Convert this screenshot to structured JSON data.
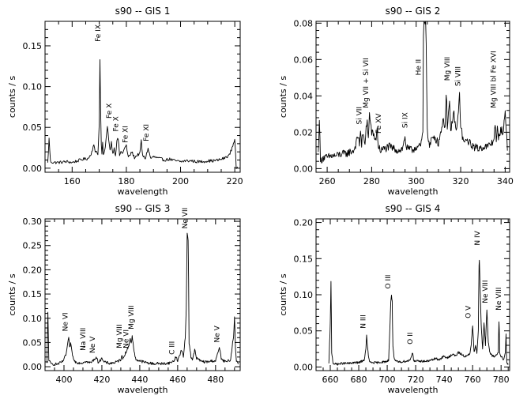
{
  "chart_data": [
    {
      "type": "line",
      "title": "s90 -- GIS 1",
      "xlabel": "wavelength",
      "ylabel": "counts / s",
      "xlim": [
        150,
        222
      ],
      "ylim": [
        -0.005,
        0.18
      ],
      "xticks": [
        160,
        180,
        200,
        220
      ],
      "xtick_labels": [
        "160",
        "180",
        "200",
        "220"
      ],
      "yticks": [
        0.0,
        0.05,
        0.1,
        0.15
      ],
      "ytick_labels": [
        "0.00",
        "0.05",
        "0.10",
        "0.15"
      ],
      "baseline": 0.007,
      "noise": 0.0018,
      "range": [
        151,
        221
      ],
      "series": [
        {
          "x": [
            151,
            151.5,
            152,
            153,
            155,
            158,
            160,
            162,
            164,
            166,
            167,
            168,
            168.5,
            169,
            169.5,
            170,
            170.3,
            170.6,
            171,
            171.2,
            171.5,
            172,
            173,
            174,
            174.5,
            175,
            175.5,
            176,
            176.5,
            177,
            177.5,
            178,
            178.5,
            179,
            180,
            180.5,
            181,
            182,
            183,
            184,
            185,
            185.5,
            186,
            187,
            188,
            188.5,
            189,
            190,
            192,
            194,
            196,
            198,
            200,
            202,
            204,
            206,
            208,
            210,
            212,
            214,
            216,
            218,
            219,
            219.5,
            220,
            220.3,
            220.5,
            221
          ],
          "values": [
            0.006,
            0.036,
            0.008,
            0.007,
            0.007,
            0.008,
            0.007,
            0.009,
            0.011,
            0.012,
            0.018,
            0.028,
            0.02,
            0.022,
            0.016,
            0.056,
            0.148,
            0.035,
            0.018,
            0.033,
            0.016,
            0.02,
            0.05,
            0.022,
            0.032,
            0.018,
            0.024,
            0.016,
            0.034,
            0.036,
            0.016,
            0.02,
            0.018,
            0.022,
            0.028,
            0.016,
            0.014,
            0.02,
            0.013,
            0.016,
            0.018,
            0.034,
            0.015,
            0.012,
            0.024,
            0.018,
            0.012,
            0.014,
            0.012,
            0.01,
            0.011,
            0.009,
            0.008,
            0.009,
            0.009,
            0.008,
            0.008,
            0.009,
            0.009,
            0.01,
            0.012,
            0.016,
            0.025,
            0.03,
            0.036,
            0.02,
            0.0,
            0.0
          ]
        }
      ],
      "annotations": [
        {
          "text": "Fe IX",
          "x": 170.4,
          "y": 0.152
        },
        {
          "text": "Fe X",
          "x": 174.5,
          "y": 0.058
        },
        {
          "text": "Fe X",
          "x": 177.0,
          "y": 0.042
        },
        {
          "text": "Fe XI",
          "x": 180.4,
          "y": 0.028
        },
        {
          "text": "Fe XI",
          "x": 188.2,
          "y": 0.03
        }
      ]
    },
    {
      "type": "line",
      "title": "s90 -- GIS 2",
      "xlabel": "wavelength",
      "ylabel": "counts / s",
      "xlim": [
        255,
        342
      ],
      "ylim": [
        -0.002,
        0.081
      ],
      "xticks": [
        260,
        280,
        300,
        320,
        340
      ],
      "xtick_labels": [
        "260",
        "280",
        "300",
        "320",
        "340"
      ],
      "yticks": [
        0.0,
        0.02,
        0.04,
        0.06,
        0.08
      ],
      "ytick_labels": [
        "0.00",
        "0.02",
        "0.04",
        "0.06",
        "0.08"
      ],
      "baseline": 0.007,
      "noise": 0.0022,
      "range": [
        256,
        341
      ],
      "series": [
        {
          "x": [
            256,
            256.5,
            257,
            258,
            260,
            262,
            264,
            266,
            268,
            270,
            272,
            273,
            274,
            274.5,
            275,
            275.5,
            276,
            276.5,
            277,
            277.5,
            278,
            278.5,
            279,
            280,
            281,
            282,
            282.5,
            283,
            284,
            286,
            288,
            290,
            292,
            294,
            295,
            295.5,
            296,
            298,
            300,
            302,
            303,
            303.3,
            303.6,
            304,
            304.4,
            305,
            306,
            307,
            308,
            309,
            310,
            311,
            312,
            313,
            313.6,
            314,
            315,
            315.5,
            316,
            317,
            318,
            319,
            319.5,
            320,
            321,
            322,
            323,
            324,
            325,
            326,
            328,
            330,
            332,
            334,
            335,
            335.4,
            336,
            336.5,
            337,
            338,
            339,
            340,
            340.5,
            341
          ],
          "values": [
            0.008,
            0.028,
            0.004,
            0.006,
            0.006,
            0.007,
            0.007,
            0.008,
            0.008,
            0.009,
            0.01,
            0.014,
            0.018,
            0.013,
            0.022,
            0.012,
            0.02,
            0.016,
            0.012,
            0.024,
            0.026,
            0.016,
            0.03,
            0.02,
            0.018,
            0.016,
            0.022,
            0.012,
            0.01,
            0.011,
            0.012,
            0.011,
            0.01,
            0.011,
            0.018,
            0.012,
            0.011,
            0.01,
            0.012,
            0.012,
            0.02,
            0.081,
            0.081,
            0.081,
            0.081,
            0.02,
            0.012,
            0.016,
            0.018,
            0.016,
            0.014,
            0.02,
            0.026,
            0.024,
            0.044,
            0.022,
            0.036,
            0.02,
            0.025,
            0.03,
            0.02,
            0.03,
            0.042,
            0.024,
            0.016,
            0.014,
            0.016,
            0.014,
            0.013,
            0.012,
            0.011,
            0.012,
            0.012,
            0.014,
            0.016,
            0.028,
            0.014,
            0.022,
            0.016,
            0.022,
            0.02,
            0.03,
            0.022,
            0.012
          ]
        }
      ],
      "annotations": [
        {
          "text": "Si VII",
          "x": 275.4,
          "y": 0.023
        },
        {
          "text": "Mg VII + Si VII",
          "x": 278.4,
          "y": 0.032
        },
        {
          "text": "Fe XV",
          "x": 284.2,
          "y": 0.018
        },
        {
          "text": "Si IX",
          "x": 296.1,
          "y": 0.021
        },
        {
          "text": "He II",
          "x": 302.0,
          "y": 0.05
        },
        {
          "text": "Mg VIII",
          "x": 315.0,
          "y": 0.047
        },
        {
          "text": "Si VIII",
          "x": 319.8,
          "y": 0.044
        },
        {
          "text": "Mg VIII bl Fe XVI",
          "x": 335.8,
          "y": 0.032
        }
      ]
    },
    {
      "type": "line",
      "title": "s90 -- GIS 3",
      "xlabel": "wavelength",
      "ylabel": "counts / s",
      "xlim": [
        390,
        493
      ],
      "ylim": [
        -0.008,
        0.305
      ],
      "xticks": [
        400,
        420,
        440,
        460,
        480
      ],
      "xtick_labels": [
        "400",
        "420",
        "440",
        "460",
        "480"
      ],
      "yticks": [
        0.0,
        0.05,
        0.1,
        0.15,
        0.2,
        0.25,
        0.3
      ],
      "ytick_labels": [
        "0.00",
        "0.05",
        "0.10",
        "0.15",
        "0.20",
        "0.25",
        "0.30"
      ],
      "baseline": 0.005,
      "noise": 0.0028,
      "range": [
        391,
        492
      ],
      "series": [
        {
          "x": [
            391,
            391.5,
            392,
            393,
            395,
            397,
            399,
            400,
            401,
            401.5,
            402,
            402.5,
            403,
            403.5,
            404,
            405,
            406,
            408,
            410,
            411,
            412,
            414,
            416,
            417,
            418,
            419,
            420,
            420.5,
            421,
            424,
            426,
            428,
            430,
            430.5,
            431,
            432,
            434,
            435,
            435.6,
            436,
            437,
            438,
            440,
            442,
            444,
            446,
            448,
            450,
            452,
            454,
            456,
            458,
            459,
            459.5,
            460,
            462,
            463,
            464,
            464.5,
            465,
            465.6,
            466,
            467,
            468,
            469,
            470,
            472,
            474,
            476,
            478,
            480,
            481,
            482,
            483,
            484,
            486,
            488,
            489,
            489.5,
            490,
            490.5,
            491,
            492
          ],
          "values": [
            0.006,
            0.112,
            0.015,
            0.006,
            0.005,
            0.006,
            0.01,
            0.015,
            0.025,
            0.035,
            0.05,
            0.058,
            0.04,
            0.048,
            0.035,
            0.015,
            0.01,
            0.008,
            0.008,
            0.012,
            0.01,
            0.008,
            0.015,
            0.02,
            0.01,
            0.012,
            0.02,
            0.012,
            0.01,
            0.007,
            0.008,
            0.01,
            0.015,
            0.025,
            0.015,
            0.025,
            0.04,
            0.06,
            0.045,
            0.065,
            0.03,
            0.015,
            0.012,
            0.01,
            0.008,
            0.007,
            0.006,
            0.007,
            0.006,
            0.007,
            0.008,
            0.012,
            0.02,
            0.018,
            0.012,
            0.035,
            0.02,
            0.06,
            0.12,
            0.275,
            0.26,
            0.05,
            0.02,
            0.015,
            0.035,
            0.018,
            0.012,
            0.01,
            0.01,
            0.012,
            0.012,
            0.025,
            0.04,
            0.018,
            0.012,
            0.01,
            0.015,
            0.05,
            0.06,
            0.105,
            0.04,
            0.012,
            0.006
          ]
        }
      ],
      "annotations": [
        {
          "text": "Ne VI",
          "x": 401.8,
          "y": 0.068
        },
        {
          "text": "Na VIII",
          "x": 411.2,
          "y": 0.028
        },
        {
          "text": "Ne V",
          "x": 416.2,
          "y": 0.023
        },
        {
          "text": "Mg VIII",
          "x": 430.4,
          "y": 0.033
        },
        {
          "text": "Ne VI",
          "x": 434.0,
          "y": 0.033
        },
        {
          "text": "Mg VIII",
          "x": 436.8,
          "y": 0.072
        },
        {
          "text": "C III",
          "x": 458.2,
          "y": 0.02
        },
        {
          "text": "Ne VII",
          "x": 465.0,
          "y": 0.28
        },
        {
          "text": "Ne V",
          "x": 482.0,
          "y": 0.045
        }
      ]
    },
    {
      "type": "line",
      "title": "s90 -- GIS 4",
      "xlabel": "wavelength",
      "ylabel": "counts / s",
      "xlim": [
        650,
        786
      ],
      "ylim": [
        -0.005,
        0.205
      ],
      "xticks": [
        660,
        680,
        700,
        720,
        740,
        760,
        780
      ],
      "xtick_labels": [
        "660",
        "680",
        "700",
        "720",
        "740",
        "760",
        "780"
      ],
      "yticks": [
        0.0,
        0.05,
        0.1,
        0.15,
        0.2
      ],
      "ytick_labels": [
        "0.00",
        "0.05",
        "0.10",
        "0.15",
        "0.20"
      ],
      "baseline": 0.005,
      "noise": 0.0015,
      "range": [
        659,
        785
      ],
      "series": [
        {
          "x": [
            659,
            660,
            660.5,
            661,
            662,
            664,
            666,
            668,
            670,
            672,
            674,
            676,
            678,
            680,
            682,
            684,
            685,
            685.5,
            686,
            687,
            688,
            690,
            692,
            694,
            696,
            698,
            700,
            701,
            702,
            702.5,
            703,
            703.5,
            704,
            705,
            706,
            708,
            710,
            712,
            714,
            716,
            717,
            718,
            718.5,
            719,
            720,
            722,
            724,
            726,
            728,
            730,
            732,
            734,
            736,
            738,
            740,
            742,
            744,
            746,
            748,
            750,
            752,
            754,
            756,
            758,
            759,
            760,
            761,
            762,
            763,
            764,
            764.6,
            765,
            765.4,
            766,
            767,
            768,
            769,
            770,
            771,
            772,
            774,
            776,
            778,
            778.6,
            779,
            780,
            782,
            783,
            783.5,
            784,
            785
          ],
          "values": [
            0.004,
            0.06,
            0.118,
            0.02,
            0.005,
            0.004,
            0.004,
            0.005,
            0.005,
            0.005,
            0.005,
            0.006,
            0.006,
            0.006,
            0.008,
            0.01,
            0.025,
            0.045,
            0.03,
            0.012,
            0.006,
            0.006,
            0.006,
            0.006,
            0.007,
            0.007,
            0.008,
            0.01,
            0.06,
            0.09,
            0.1,
            0.09,
            0.03,
            0.01,
            0.008,
            0.007,
            0.007,
            0.008,
            0.008,
            0.01,
            0.015,
            0.02,
            0.01,
            0.008,
            0.008,
            0.008,
            0.008,
            0.008,
            0.008,
            0.009,
            0.01,
            0.012,
            0.01,
            0.012,
            0.015,
            0.012,
            0.015,
            0.018,
            0.015,
            0.02,
            0.018,
            0.015,
            0.015,
            0.018,
            0.03,
            0.058,
            0.02,
            0.03,
            0.02,
            0.05,
            0.16,
            0.13,
            0.1,
            0.06,
            0.025,
            0.06,
            0.03,
            0.08,
            0.035,
            0.02,
            0.015,
            0.015,
            0.02,
            0.07,
            0.02,
            0.015,
            0.01,
            0.02,
            0.045,
            0.005,
            0.004
          ]
        }
      ],
      "annotations": [
        {
          "text": "N III",
          "x": 684.8,
          "y": 0.05
        },
        {
          "text": "O III",
          "x": 702.3,
          "y": 0.105
        },
        {
          "text": "O II",
          "x": 717.8,
          "y": 0.028
        },
        {
          "text": "O V",
          "x": 758.6,
          "y": 0.064
        },
        {
          "text": "N IV",
          "x": 764.8,
          "y": 0.165
        },
        {
          "text": "Ne VIII",
          "x": 770.4,
          "y": 0.085
        },
        {
          "text": "Ne VIII",
          "x": 780.0,
          "y": 0.075
        }
      ]
    }
  ]
}
